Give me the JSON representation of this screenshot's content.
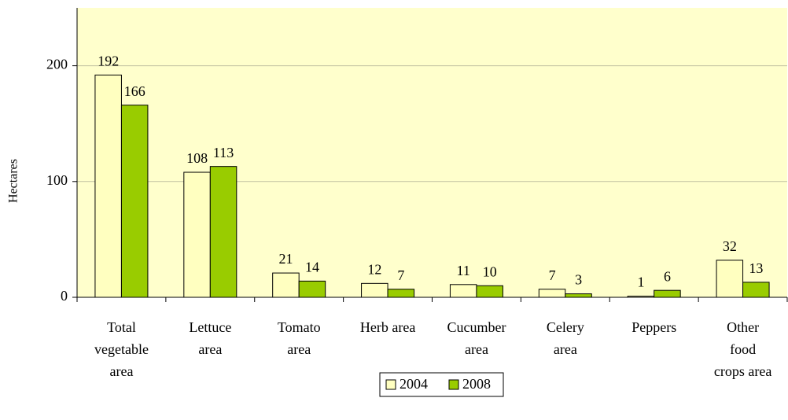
{
  "chart_data": {
    "type": "bar",
    "y_label": "Hectares",
    "categories": [
      "Total\nvegetable\narea",
      "Lettuce\narea",
      "Tomato\narea",
      "Herb area",
      "Cucumber\narea",
      "Celery\narea",
      "Peppers",
      "Other\nfood\ncrops area"
    ],
    "series": [
      {
        "name": "2004",
        "color": "#ffffc0",
        "values": [
          192,
          108,
          21,
          12,
          11,
          7,
          1,
          32
        ]
      },
      {
        "name": "2008",
        "color": "#99cc00",
        "values": [
          166,
          113,
          14,
          7,
          10,
          3,
          6,
          13
        ]
      }
    ],
    "ylim": [
      0,
      250
    ],
    "yticks": [
      0,
      100,
      200
    ],
    "grid": true,
    "plot_background": "#ffffcc",
    "legend": "bottom"
  }
}
